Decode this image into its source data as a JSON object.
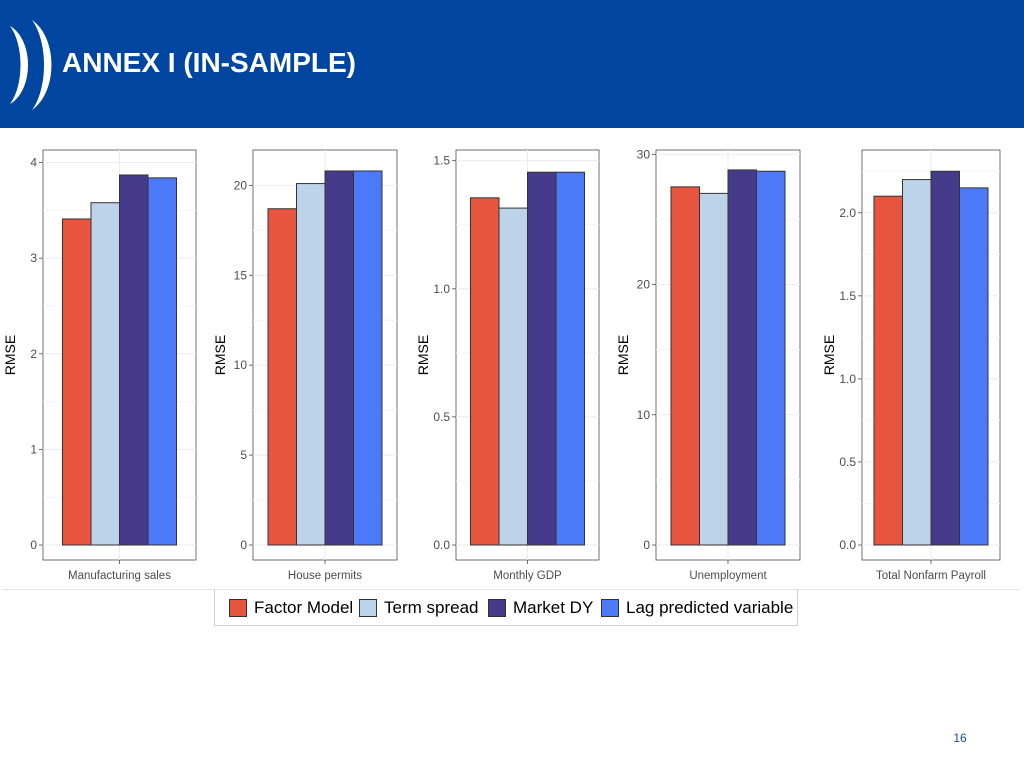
{
  "header": {
    "title": "ANNEX I (IN-SAMPLE)"
  },
  "colors": {
    "header_bg": "#0046a0",
    "series": [
      "#e8553f",
      "#bcd3ea",
      "#453b8a",
      "#4b79f8"
    ]
  },
  "legend": {
    "items": [
      "Factor Model",
      "Term spread",
      "Market DY",
      "Lag predicted variable"
    ]
  },
  "page_number": "16",
  "chart_data": [
    {
      "type": "bar",
      "categories": [
        "Manufacturing sales"
      ],
      "series": [
        {
          "name": "Factor Model",
          "values": [
            3.41
          ]
        },
        {
          "name": "Term spread",
          "values": [
            3.58
          ]
        },
        {
          "name": "Market DY",
          "values": [
            3.87
          ]
        },
        {
          "name": "Lag predicted variable",
          "values": [
            3.84
          ]
        }
      ],
      "ylabel": "RMSE",
      "ylim": [
        0,
        4.1
      ],
      "yticks": [
        "0",
        "1",
        "2",
        "3",
        "4"
      ],
      "grid": true
    },
    {
      "type": "bar",
      "categories": [
        "House permits"
      ],
      "series": [
        {
          "name": "Factor Model",
          "values": [
            18.7
          ]
        },
        {
          "name": "Term spread",
          "values": [
            20.1
          ]
        },
        {
          "name": "Market DY",
          "values": [
            20.8
          ]
        },
        {
          "name": "Lag predicted variable",
          "values": [
            20.8
          ]
        }
      ],
      "ylabel": "RMSE",
      "ylim": [
        0,
        21.8
      ],
      "yticks": [
        "0",
        "5",
        "10",
        "15",
        "20"
      ],
      "grid": true
    },
    {
      "type": "bar",
      "categories": [
        "Monthly GDP"
      ],
      "series": [
        {
          "name": "Factor Model",
          "values": [
            1.355
          ]
        },
        {
          "name": "Term spread",
          "values": [
            1.315
          ]
        },
        {
          "name": "Market DY",
          "values": [
            1.455
          ]
        },
        {
          "name": "Lag predicted variable",
          "values": [
            1.455
          ]
        }
      ],
      "ylabel": "RMSE",
      "ylim": [
        0,
        1.53
      ],
      "yticks": [
        "0.0",
        "0.5",
        "1.0",
        "1.5"
      ],
      "grid": true
    },
    {
      "type": "bar",
      "categories": [
        "Unemployment"
      ],
      "series": [
        {
          "name": "Factor Model",
          "values": [
            27.5
          ]
        },
        {
          "name": "Term spread",
          "values": [
            27.0
          ]
        },
        {
          "name": "Market DY",
          "values": [
            28.8
          ]
        },
        {
          "name": "Lag predicted variable",
          "values": [
            28.7
          ]
        }
      ],
      "ylabel": "RMSE",
      "ylim": [
        0,
        30.1
      ],
      "yticks": [
        "0",
        "10",
        "20",
        "30"
      ],
      "grid": true
    },
    {
      "type": "bar",
      "categories": [
        "Total Nonfarm Payroll"
      ],
      "series": [
        {
          "name": "Factor Model",
          "values": [
            2.1
          ]
        },
        {
          "name": "Term spread",
          "values": [
            2.2
          ]
        },
        {
          "name": "Market DY",
          "values": [
            2.25
          ]
        },
        {
          "name": "Lag predicted variable",
          "values": [
            2.15
          ]
        }
      ],
      "ylabel": "RMSE",
      "ylim": [
        0,
        2.36
      ],
      "yticks": [
        "0.0",
        "0.5",
        "1.0",
        "1.5",
        "2.0"
      ],
      "grid": true
    }
  ]
}
